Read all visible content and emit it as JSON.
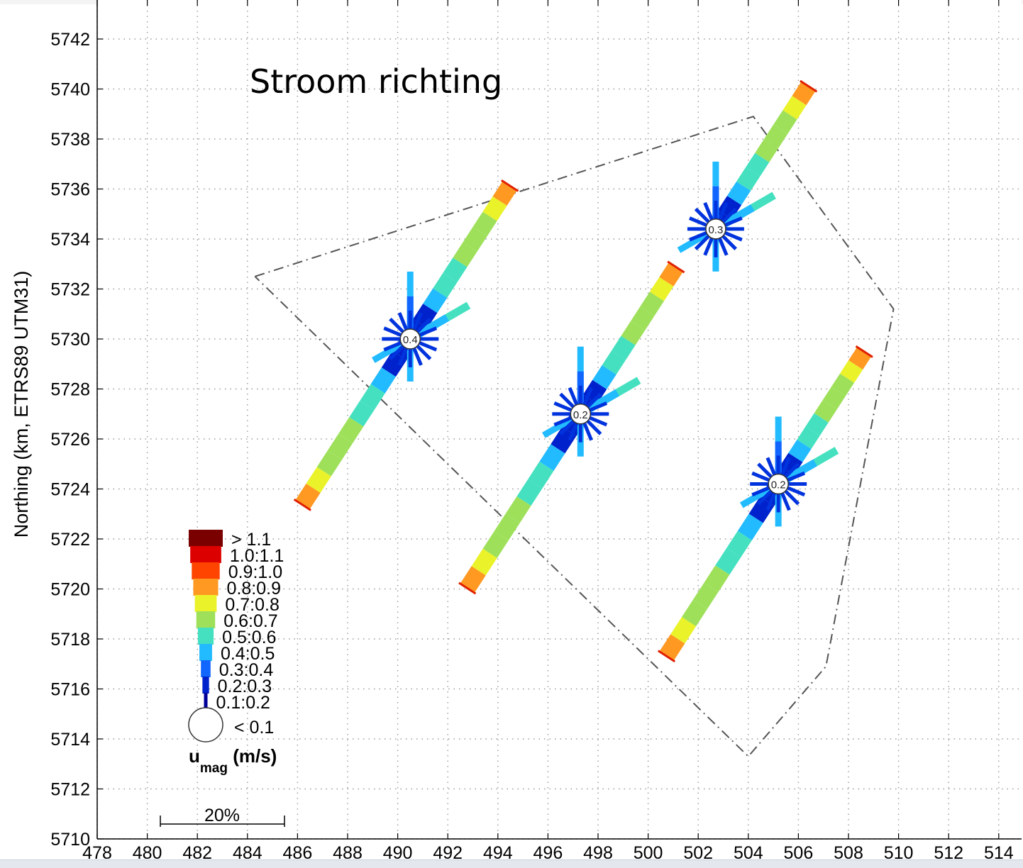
{
  "chart_data": {
    "type": "scatter",
    "title": "Stroom richting",
    "ylabel": "Northing (km, ETRS89 UTM31)",
    "xlim": [
      478,
      514
    ],
    "ylim": [
      5710,
      5743
    ],
    "x_ticks": [
      "478",
      "480",
      "482",
      "484",
      "486",
      "488",
      "490",
      "492",
      "494",
      "496",
      "498",
      "500",
      "502",
      "504",
      "506",
      "508",
      "510",
      "512",
      "514"
    ],
    "y_ticks": [
      "5710",
      "5712",
      "5714",
      "5716",
      "5718",
      "5720",
      "5722",
      "5724",
      "5726",
      "5728",
      "5730",
      "5732",
      "5734",
      "5736",
      "5738",
      "5740",
      "5742"
    ],
    "grid": true,
    "boundary_polygon": [
      {
        "x": 484.3,
        "y": 5732.5
      },
      {
        "x": 504.2,
        "y": 5738.9
      },
      {
        "x": 509.8,
        "y": 5731.2
      },
      {
        "x": 507.1,
        "y": 5716.9
      },
      {
        "x": 504.0,
        "y": 5713.3
      },
      {
        "x": 484.3,
        "y": 5732.5
      }
    ],
    "roses": [
      {
        "x": 490.5,
        "y": 5730.0,
        "label": "0.4",
        "main_dir_deg": 33,
        "main_len_km": 7.3,
        "opp_len_km": 7.9,
        "spoke_len_km": 1.1
      },
      {
        "x": 497.3,
        "y": 5727.0,
        "label": "0.2",
        "main_dir_deg": 33,
        "main_len_km": 7.0,
        "opp_len_km": 8.3,
        "spoke_len_km": 1.1
      },
      {
        "x": 502.7,
        "y": 5734.4,
        "label": "0.3",
        "main_dir_deg": 33,
        "main_len_km": 6.8,
        "opp_len_km": 0,
        "spoke_len_km": 1.1
      },
      {
        "x": 505.2,
        "y": 5724.2,
        "label": "0.2",
        "main_dir_deg": 33,
        "main_len_km": 6.3,
        "opp_len_km": 8.2,
        "spoke_len_km": 1.1
      }
    ],
    "legend": {
      "placement": "bottom-left",
      "title": "u",
      "title_sub": "mag",
      "title_unit": " (m/s)",
      "classes": [
        {
          "label": "> 1.1",
          "color": "#7a0000"
        },
        {
          "label": "1.0:1.1",
          "color": "#dd0000"
        },
        {
          "label": "0.9:1.0",
          "color": "#ff4400"
        },
        {
          "label": "0.8:0.9",
          "color": "#ff9922"
        },
        {
          "label": "0.7:0.8",
          "color": "#eaf22a"
        },
        {
          "label": "0.6:0.7",
          "color": "#9ee05a"
        },
        {
          "label": "0.5:0.6",
          "color": "#44e0c0"
        },
        {
          "label": "0.4:0.5",
          "color": "#22bbff"
        },
        {
          "label": "0.3:0.4",
          "color": "#1166ff"
        },
        {
          "label": "0.2:0.3",
          "color": "#0022cc"
        },
        {
          "label": "0.1:0.2",
          "color": "#000099"
        }
      ],
      "calm_label": "< 0.1",
      "scale_label": "20%"
    }
  }
}
